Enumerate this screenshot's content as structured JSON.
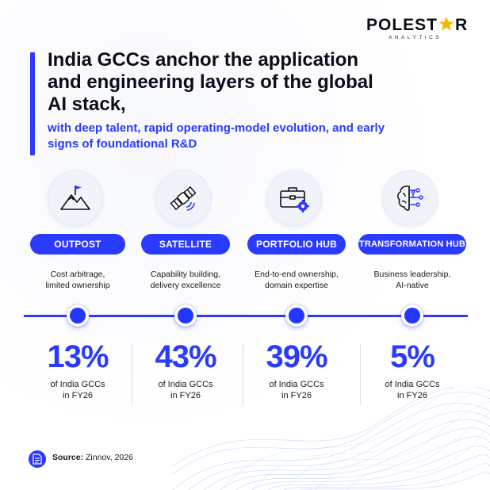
{
  "brand": {
    "name_left": "POLEST",
    "name_right": "R",
    "tagline": "ANALYTICS",
    "star_color": "#f6b800"
  },
  "header": {
    "title": "India GCCs anchor the application and engineering layers of the global AI stack,",
    "subtitle": "with deep talent, rapid operating-model evolution, and early signs of foundational R&D"
  },
  "colors": {
    "accent": "#2b3aff",
    "text": "#0c0c1a"
  },
  "stages": [
    {
      "icon": "mountain-flag-icon",
      "label": "OUTPOST",
      "description_line1": "Cost arbitrage,",
      "description_line2": "limited ownership",
      "percent": "13%",
      "share_line1": "of India GCCs",
      "share_line2": "in FY26"
    },
    {
      "icon": "satellite-icon",
      "label": "SATELLITE",
      "description_line1": "Capability building,",
      "description_line2": "delivery excellence",
      "percent": "43%",
      "share_line1": "of India GCCs",
      "share_line2": "in FY26"
    },
    {
      "icon": "briefcase-gear-icon",
      "label": "PORTFOLIO HUB",
      "description_line1": "End-to-end ownership,",
      "description_line2": "domain expertise",
      "percent": "39%",
      "share_line1": "of India GCCs",
      "share_line2": "in FY26"
    },
    {
      "icon": "brain-circuit-icon",
      "label": "TRANSFORMATION HUB",
      "description_line1": "Business leadership,",
      "description_line2": "AI-native",
      "percent": "5%",
      "share_line1": "of India GCCs",
      "share_line2": "in FY26"
    }
  ],
  "footer": {
    "source_label": "Source:",
    "source_value": "Zinnov, 2026"
  }
}
